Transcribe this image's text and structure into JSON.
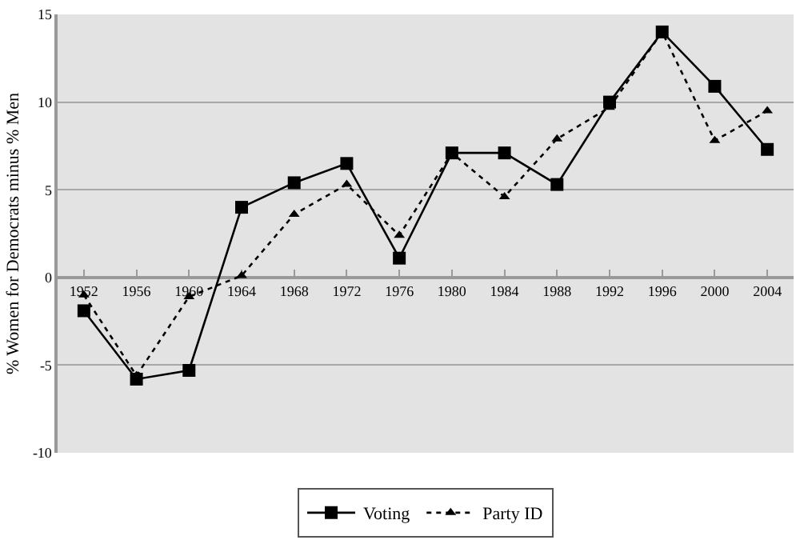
{
  "chart_data": {
    "type": "line",
    "ylabel": "% Women for Democrats minus % Men",
    "categories": [
      "1952",
      "1956",
      "1960",
      "1964",
      "1968",
      "1972",
      "1976",
      "1980",
      "1984",
      "1988",
      "1992",
      "1996",
      "2000",
      "2004"
    ],
    "series": [
      {
        "name": "Voting",
        "color": "#000000",
        "marker": "square",
        "line_style": "solid",
        "values": [
          -1.9,
          -5.8,
          -5.3,
          4.0,
          5.4,
          6.5,
          1.1,
          7.1,
          7.1,
          5.3,
          10.0,
          14.0,
          10.9,
          7.3
        ]
      },
      {
        "name": "Party ID",
        "color": "#000000",
        "marker": "triangle",
        "line_style": "dotted",
        "values": [
          -1.0,
          -5.6,
          -1.1,
          0.1,
          3.6,
          5.3,
          2.4,
          7.1,
          4.6,
          7.9,
          9.7,
          14.0,
          7.8,
          9.5
        ]
      }
    ],
    "ylim": [
      -10,
      15
    ],
    "yticks": [
      -10,
      -5,
      0,
      5,
      10,
      15
    ],
    "grid": "y",
    "legend": "bottom"
  }
}
